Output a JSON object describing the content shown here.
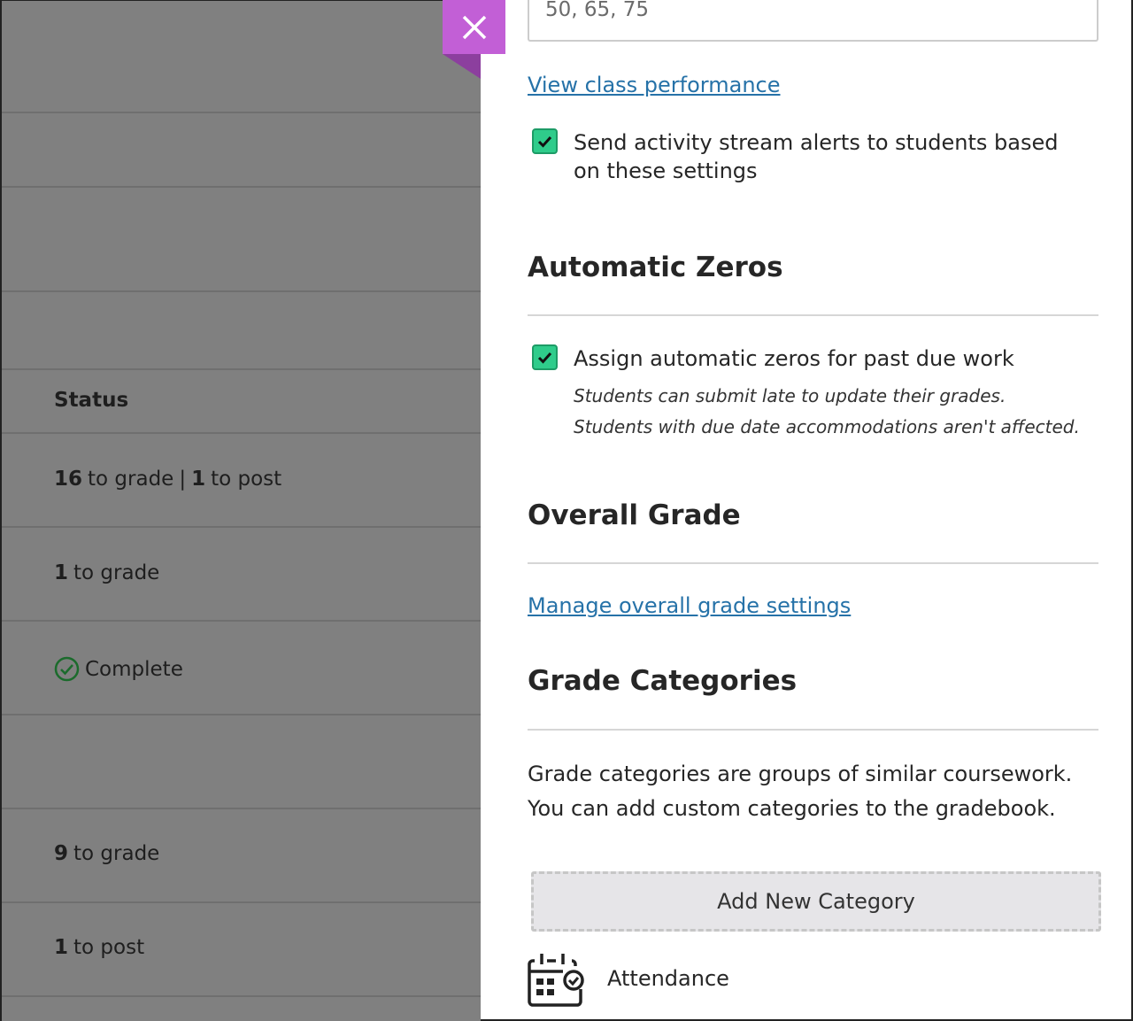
{
  "left": {
    "status_header": "Status",
    "rows": [
      {
        "n1": "16",
        "t1": "to grade",
        "sep": "|",
        "n2": "1",
        "t2": "to post"
      },
      {
        "n1": "1",
        "t1": "to grade"
      },
      {
        "complete": "Complete"
      },
      {
        "n1": "9",
        "t1": "to grade"
      },
      {
        "n1": "1",
        "t1": "to post"
      }
    ]
  },
  "panel": {
    "close_icon": "close-icon",
    "schema_value": "50, 65, 75",
    "view_performance": "View class performance",
    "activity_alerts": "Send activity stream alerts to students based on these settings",
    "activity_checked": true,
    "auto_zeros": {
      "title": "Automatic Zeros",
      "label": "Assign automatic zeros for past due work",
      "checked": true,
      "note1": "Students can submit late to update their grades.",
      "note2": "Students with due date accommodations aren't affected."
    },
    "overall": {
      "title": "Overall Grade",
      "link": "Manage overall grade settings"
    },
    "categories": {
      "title": "Grade Categories",
      "desc": "Grade categories are groups of similar coursework. You can add custom categories to the gradebook.",
      "add_button": "Add New Category",
      "first_category": "Attendance"
    }
  },
  "colors": {
    "accent": "#c25fd6",
    "checkbox": "#2fcc8b",
    "link": "#2672a8",
    "complete": "#1b6b2c"
  }
}
